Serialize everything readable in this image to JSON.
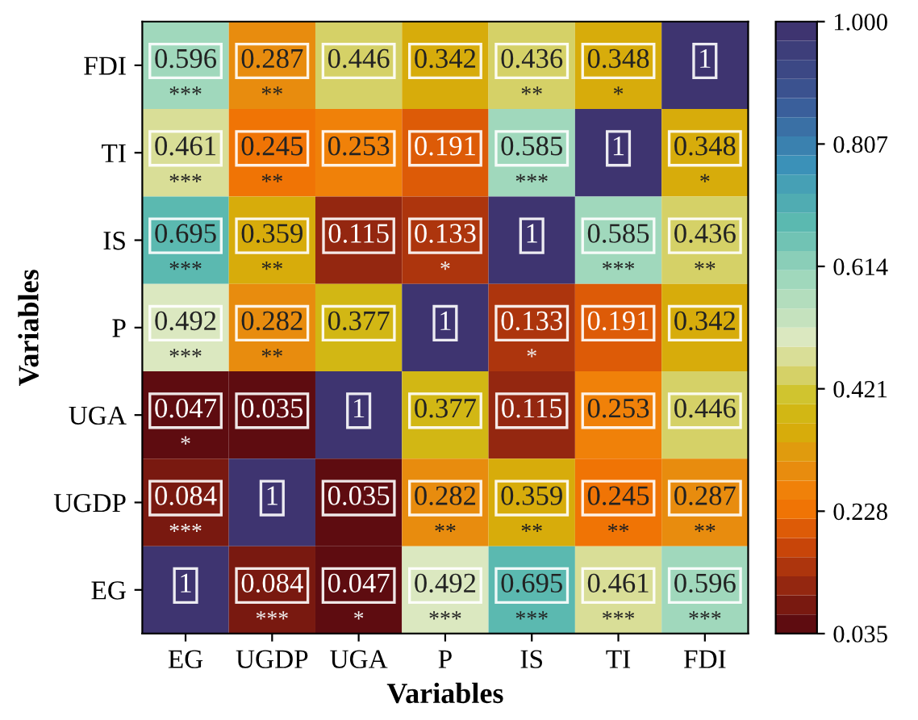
{
  "chart_data": {
    "type": "heatmap",
    "xlabel": "Variables",
    "ylabel": "Variables",
    "categories": [
      "EG",
      "UGDP",
      "UGA",
      "P",
      "IS",
      "TI",
      "FDI"
    ],
    "y_categories": [
      "FDI",
      "TI",
      "IS",
      "P",
      "UGA",
      "UGDP",
      "EG"
    ],
    "cells": [
      [
        0.596,
        0.287,
        0.446,
        0.342,
        0.436,
        0.348,
        1
      ],
      [
        0.461,
        0.245,
        0.253,
        0.191,
        0.585,
        1,
        0.348
      ],
      [
        0.695,
        0.359,
        0.115,
        0.133,
        1,
        0.585,
        0.436
      ],
      [
        0.492,
        0.282,
        0.377,
        1,
        0.133,
        0.191,
        0.342
      ],
      [
        0.047,
        0.035,
        1,
        0.377,
        0.115,
        0.253,
        0.446
      ],
      [
        0.084,
        1,
        0.035,
        0.282,
        0.359,
        0.245,
        0.287
      ],
      [
        1,
        0.084,
        0.047,
        0.492,
        0.695,
        0.461,
        0.596
      ]
    ],
    "cell_labels": [
      [
        "0.596\n***",
        "0.287\n**",
        "0.446",
        "0.342",
        "0.436\n**",
        "0.348\n*",
        "1"
      ],
      [
        "0.461\n***",
        "0.245\n**",
        "0.253",
        "0.191",
        "0.585\n***",
        "1",
        "0.348\n*"
      ],
      [
        "0.695\n***",
        "0.359\n**",
        "0.115",
        "0.133\n*",
        "1",
        "0.585\n***",
        "0.436\n**"
      ],
      [
        "0.492\n***",
        "0.282\n**",
        "0.377",
        "1",
        "0.133\n*",
        "0.191",
        "0.342"
      ],
      [
        "0.047\n*",
        "0.035",
        "1",
        "0.377",
        "0.115",
        "0.253",
        "0.446"
      ],
      [
        "0.084\n***",
        "1",
        "0.035",
        "0.282\n**",
        "0.359\n**",
        "0.245\n**",
        "0.287\n**"
      ],
      [
        "1",
        "0.084\n***",
        "0.047\n*",
        "0.492\n***",
        "0.695\n***",
        "0.461\n***",
        "0.596\n***"
      ]
    ],
    "clim": [
      0.035,
      1.0
    ],
    "cticks": [
      {
        "value": 0.035,
        "label": "0.035"
      },
      {
        "value": 0.228,
        "label": "0.228"
      },
      {
        "value": 0.421,
        "label": "0.421"
      },
      {
        "value": 0.614,
        "label": "0.614"
      },
      {
        "value": 0.807,
        "label": "0.807"
      },
      {
        "value": 1.0,
        "label": "1.000"
      }
    ]
  }
}
